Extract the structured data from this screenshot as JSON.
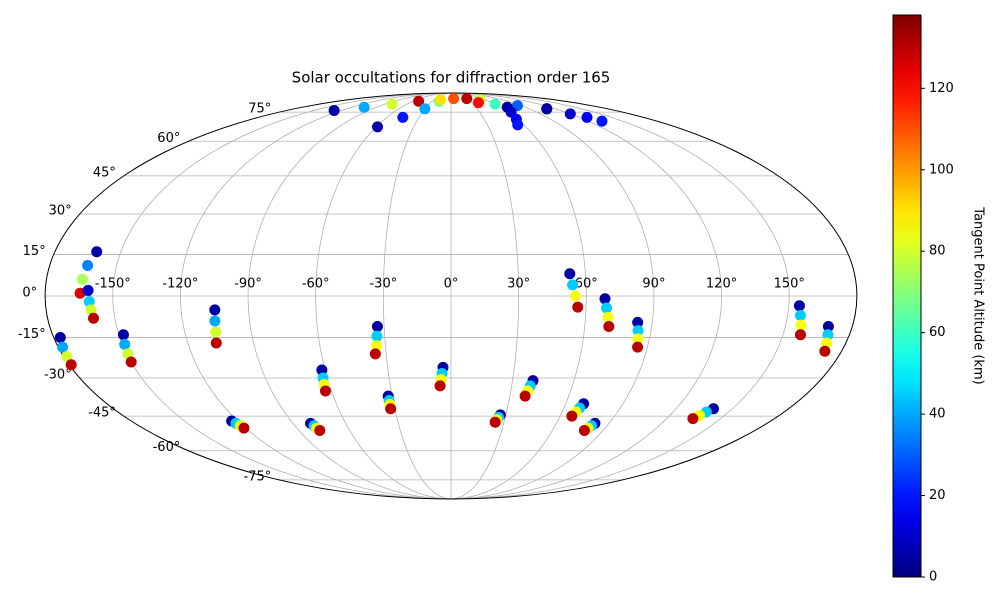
{
  "chart_data": {
    "type": "scatter",
    "projection": "mollweide",
    "title": "Solar occultations for diffraction order 165",
    "xlim": [
      -180,
      180
    ],
    "ylim": [
      -90,
      90
    ],
    "xticks": [
      {
        "value": -150,
        "label": "-150°"
      },
      {
        "value": -120,
        "label": "-120°"
      },
      {
        "value": -90,
        "label": "-90°"
      },
      {
        "value": -60,
        "label": "-60°"
      },
      {
        "value": -30,
        "label": "-30°"
      },
      {
        "value": 0,
        "label": "0°"
      },
      {
        "value": 30,
        "label": "30°"
      },
      {
        "value": 60,
        "label": "60°"
      },
      {
        "value": 90,
        "label": "90°"
      },
      {
        "value": 120,
        "label": "120°"
      },
      {
        "value": 150,
        "label": "150°"
      }
    ],
    "yticks": [
      {
        "value": -75,
        "label": "-75°"
      },
      {
        "value": -60,
        "label": "-60°"
      },
      {
        "value": -45,
        "label": "-45°"
      },
      {
        "value": -30,
        "label": "-30°"
      },
      {
        "value": -15,
        "label": "-15°"
      },
      {
        "value": 0,
        "label": "0°"
      },
      {
        "value": 15,
        "label": "15°"
      },
      {
        "value": 30,
        "label": "30°"
      },
      {
        "value": 45,
        "label": "45°"
      },
      {
        "value": 60,
        "label": "60°"
      },
      {
        "value": 75,
        "label": "75°"
      }
    ],
    "grid": true,
    "colormap": "jet",
    "clim": [
      0,
      138
    ],
    "cticks": [
      0,
      20,
      40,
      60,
      80,
      100,
      120
    ],
    "clabel": "Tangent Point Altitude (km)",
    "x": [
      -161,
      -163,
      -164,
      -164.5,
      -161,
      -160.5,
      -160,
      -159.5,
      -177,
      -178,
      -178.5,
      -179,
      -148,
      -149,
      -149.5,
      -150,
      -105,
      -105.5,
      -106,
      -107,
      -123.5,
      -122.5,
      -121.5,
      -121,
      -80,
      -79,
      -78.5,
      -77.7,
      -61.5,
      -62,
      -62.5,
      -63,
      -33,
      -33.5,
      -34,
      -35,
      -32,
      -32,
      -32.1,
      -32.2,
      -3.8,
      -4.3,
      -4.8,
      -5.4,
      27,
      26.3,
      25.6,
      25,
      40,
      39.2,
      38.5,
      37.8,
      69.4,
      68.4,
      67.5,
      66.5,
      82,
      81,
      80,
      79,
      53,
      54,
      55.2,
      56.3,
      68.3,
      69.1,
      70,
      70.8,
      83.5,
      84.2,
      84.8,
      85.5,
      140,
      138,
      136.3,
      134.6,
      154.7,
      155.7,
      156.8,
      157.9,
      169.3,
      170.3,
      171.3,
      172.3,
      -128,
      -105,
      -80,
      -51,
      -59,
      -45,
      -30,
      -18,
      -18,
      5,
      30,
      50,
      40,
      60,
      85,
      110,
      110,
      120,
      127,
      132,
      68,
      63,
      59,
      55
    ],
    "y": [
      16,
      11,
      6,
      1,
      2,
      -2,
      -5,
      -8,
      -15,
      -18.5,
      -22,
      -25,
      -14,
      -17.5,
      -21,
      -24,
      -5,
      -9,
      -13,
      -17,
      -47,
      -48,
      -49,
      -50,
      -48,
      -49,
      -50,
      -51,
      -27,
      -30,
      -32.5,
      -35,
      -11,
      -14.5,
      -18,
      -21,
      -37,
      -38.7,
      -40.3,
      -42,
      -26,
      -28.3,
      -30.6,
      -33,
      -44.5,
      -45.5,
      -46.5,
      -47.5,
      -31,
      -33,
      -35,
      -37,
      -40,
      -41.7,
      -43.3,
      -45,
      -48,
      -49,
      -50,
      -51,
      8,
      4,
      0,
      -4,
      -1,
      -4.3,
      -7.7,
      -11,
      -9.5,
      -12.5,
      -15.5,
      -18.5,
      -42,
      -43.3,
      -44.7,
      -46,
      -3.5,
      -7,
      -10.5,
      -14,
      -11,
      -14,
      -17,
      -20,
      76,
      78,
      80,
      82,
      67,
      72,
      77,
      82,
      83,
      84,
      84,
      83,
      81,
      80,
      79,
      77,
      77,
      74,
      72,
      70,
      78,
      75,
      71,
      68
    ],
    "c": [
      5,
      35,
      75,
      125,
      10,
      45,
      80,
      130,
      5,
      40,
      80,
      130,
      5,
      40,
      80,
      130,
      5,
      40,
      80,
      130,
      5,
      45,
      85,
      130,
      5,
      45,
      85,
      130,
      5,
      45,
      85,
      130,
      5,
      45,
      85,
      130,
      5,
      45,
      85,
      130,
      5,
      45,
      85,
      130,
      5,
      45,
      85,
      130,
      5,
      45,
      85,
      130,
      5,
      45,
      85,
      130,
      5,
      45,
      85,
      130,
      5,
      45,
      85,
      130,
      5,
      45,
      85,
      130,
      5,
      45,
      85,
      130,
      5,
      45,
      85,
      130,
      5,
      45,
      85,
      130,
      5,
      45,
      85,
      130,
      5,
      40,
      80,
      130,
      5,
      20,
      40,
      60,
      90,
      110,
      130,
      80,
      120,
      60,
      30,
      10,
      5,
      10,
      15,
      20,
      5,
      10,
      15,
      20
    ]
  }
}
